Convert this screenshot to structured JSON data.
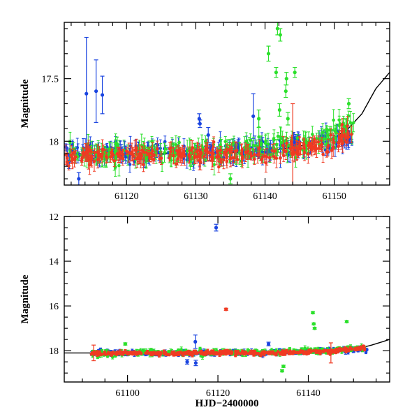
{
  "chart_data": [
    {
      "type": "scatter",
      "title": "",
      "xlabel": "",
      "ylabel": "Magnitude",
      "xlim": [
        61111,
        61158
      ],
      "ylim": [
        18.35,
        17.05
      ],
      "y_inverted": true,
      "x_ticks": [
        61120,
        61130,
        61140,
        61150
      ],
      "x_tick_labels": [
        "61120",
        "61130",
        "61140",
        "61150"
      ],
      "y_ticks": [
        17.5,
        18
      ],
      "y_tick_labels": [
        "17.5",
        "18"
      ],
      "baseline_model": {
        "points": [
          [
            61111,
            18.1
          ],
          [
            61120,
            18.1
          ],
          [
            61130,
            18.1
          ],
          [
            61140,
            18.08
          ],
          [
            61145,
            18.04
          ],
          [
            61150,
            17.97
          ],
          [
            61152,
            17.9
          ],
          [
            61154,
            17.78
          ],
          [
            61156,
            17.58
          ],
          [
            61158,
            17.45
          ]
        ]
      },
      "series": [
        {
          "color": "#1a44e0",
          "baseline": [
            [
              61111,
              18.09
            ],
            [
              61130,
              18.09
            ],
            [
              61140,
              18.07
            ],
            [
              61150,
              18.0
            ]
          ],
          "scatter": 0.06,
          "outliers": [
            {
              "x": 61114.2,
              "y": 17.62,
              "err": 0.45
            },
            {
              "x": 61115.6,
              "y": 17.6,
              "err": 0.25
            },
            {
              "x": 61116.5,
              "y": 17.63,
              "err": 0.15
            },
            {
              "x": 61130.5,
              "y": 17.82,
              "err": 0.04
            },
            {
              "x": 61130.6,
              "y": 17.86,
              "err": 0.03
            },
            {
              "x": 61131.8,
              "y": 17.95,
              "err": 0.06
            },
            {
              "x": 61138.3,
              "y": 17.8,
              "err": 0.18
            },
            {
              "x": 61113.1,
              "y": 18.3,
              "err": 0.05
            }
          ]
        },
        {
          "color": "#2be02b",
          "baseline": [
            [
              61111,
              18.1
            ],
            [
              61135,
              18.08
            ],
            [
              61140,
              18.05
            ],
            [
              61147,
              18.0
            ],
            [
              61152,
              17.86
            ]
          ],
          "scatter": 0.07,
          "outliers": [
            {
              "x": 61141.8,
              "y": 17.1,
              "err": 0.05
            },
            {
              "x": 61142.2,
              "y": 17.15,
              "err": 0.05
            },
            {
              "x": 61140.5,
              "y": 17.3,
              "err": 0.06
            },
            {
              "x": 61141.6,
              "y": 17.45,
              "err": 0.04
            },
            {
              "x": 61143.1,
              "y": 17.5,
              "err": 0.05
            },
            {
              "x": 61144.3,
              "y": 17.45,
              "err": 0.04
            },
            {
              "x": 61143.0,
              "y": 17.6,
              "err": 0.05
            },
            {
              "x": 61142.1,
              "y": 17.75,
              "err": 0.05
            },
            {
              "x": 61143.3,
              "y": 17.82,
              "err": 0.05
            },
            {
              "x": 61139.1,
              "y": 17.82,
              "err": 0.07
            },
            {
              "x": 61152.1,
              "y": 17.7,
              "err": 0.04
            },
            {
              "x": 61135.0,
              "y": 18.3,
              "err": 0.04
            }
          ]
        },
        {
          "color": "#f03a22",
          "baseline": [
            [
              61111,
              18.12
            ],
            [
              61140,
              18.1
            ],
            [
              61145,
              18.07
            ],
            [
              61150,
              18.02
            ],
            [
              61153,
              17.88
            ]
          ],
          "scatter": 0.06,
          "outliers": [
            {
              "x": 61144.0,
              "y": 18.05,
              "err": 0.35
            }
          ]
        }
      ]
    },
    {
      "type": "scatter",
      "title": "",
      "xlabel": "HJD−2400000",
      "ylabel": "Magnitude",
      "xlim": [
        61086,
        61158
      ],
      "ylim": [
        19.4,
        12.0
      ],
      "y_inverted": true,
      "x_ticks": [
        61100,
        61120,
        61140
      ],
      "x_tick_labels": [
        "61100",
        "61120",
        "61140"
      ],
      "y_ticks": [
        12,
        14,
        16,
        18
      ],
      "y_tick_labels": [
        "12",
        "14",
        "16",
        "18"
      ],
      "baseline_model": {
        "points": [
          [
            61086,
            18.1
          ],
          [
            61120,
            18.1
          ],
          [
            61140,
            18.08
          ],
          [
            61150,
            17.95
          ],
          [
            61154,
            17.75
          ],
          [
            61158,
            17.5
          ]
        ]
      },
      "series": [
        {
          "color": "#1a44e0",
          "baseline": [
            [
              61092,
              18.1
            ],
            [
              61130,
              18.1
            ],
            [
              61150,
              17.95
            ]
          ],
          "scatter": 0.08,
          "outliers": [
            {
              "x": 61119.6,
              "y": 12.5,
              "err": 0.15
            },
            {
              "x": 61115.0,
              "y": 17.6,
              "err": 0.3
            },
            {
              "x": 61131.2,
              "y": 17.7,
              "err": 0.08
            },
            {
              "x": 61113.2,
              "y": 18.5,
              "err": 0.1
            },
            {
              "x": 61115.1,
              "y": 18.55,
              "err": 0.12
            }
          ]
        },
        {
          "color": "#2be02b",
          "baseline": [
            [
              61092,
              18.1
            ],
            [
              61130,
              18.08
            ],
            [
              61145,
              18.0
            ],
            [
              61152,
              17.85
            ]
          ],
          "scatter": 0.09,
          "outliers": [
            {
              "x": 61141.0,
              "y": 16.3,
              "err": 0.05
            },
            {
              "x": 61141.2,
              "y": 16.8,
              "err": 0.04
            },
            {
              "x": 61141.4,
              "y": 17.0,
              "err": 0.04
            },
            {
              "x": 61148.5,
              "y": 16.7,
              "err": 0.04
            },
            {
              "x": 61099.5,
              "y": 17.7,
              "err": 0.05
            },
            {
              "x": 61134.2,
              "y": 18.9,
              "err": 0.05
            },
            {
              "x": 61134.5,
              "y": 18.7,
              "err": 0.05
            }
          ]
        },
        {
          "color": "#f03a22",
          "baseline": [
            [
              61092,
              18.12
            ],
            [
              61130,
              18.1
            ],
            [
              61145,
              18.02
            ],
            [
              61153,
              17.85
            ]
          ],
          "scatter": 0.07,
          "outliers": [
            {
              "x": 61121.8,
              "y": 16.15,
              "err": 0.05
            },
            {
              "x": 61145.0,
              "y": 18.1,
              "err": 0.45
            },
            {
              "x": 61092.5,
              "y": 18.1,
              "err": 0.35
            }
          ]
        }
      ]
    }
  ]
}
